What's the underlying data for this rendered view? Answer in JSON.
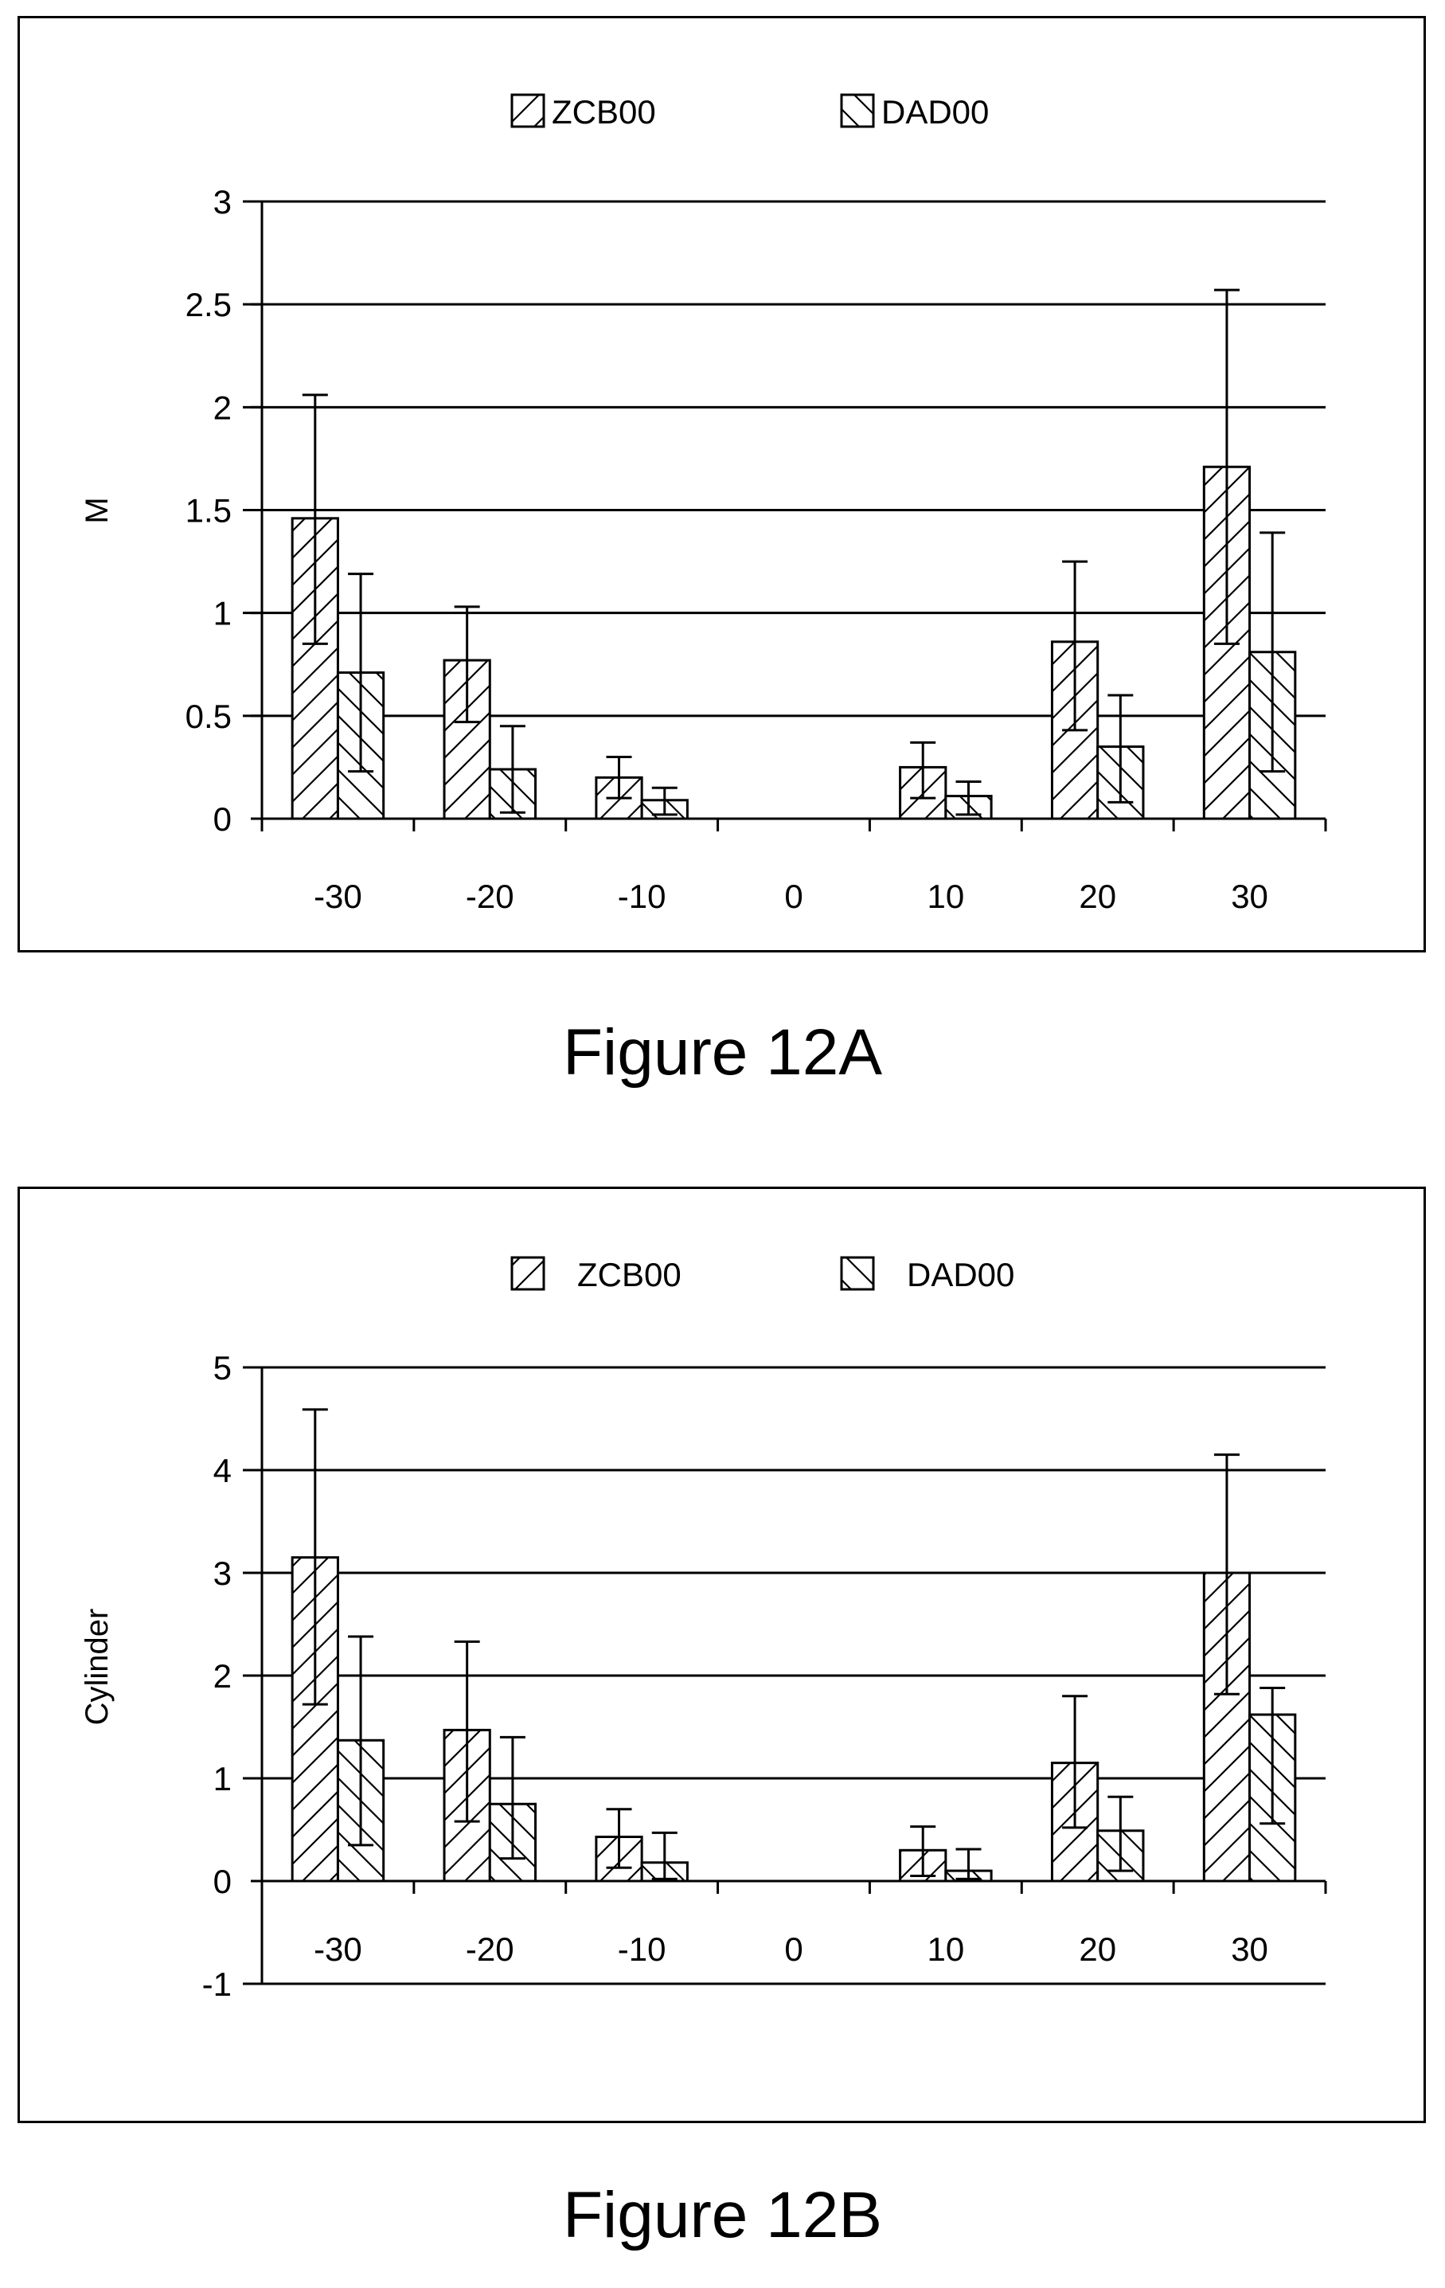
{
  "figures": [
    {
      "caption": "Figure 12A",
      "chart_data": {
        "type": "bar",
        "categories": [
          "-30",
          "-20",
          "-10",
          "0",
          "10",
          "20",
          "30"
        ],
        "series": [
          {
            "name": "ZCB00",
            "pattern": "forward-hatch",
            "values": [
              1.46,
              0.77,
              0.2,
              0,
              0.25,
              0.86,
              1.71
            ],
            "err_low": [
              0.85,
              0.47,
              0.1,
              0,
              0.1,
              0.43,
              0.85
            ],
            "err_high": [
              2.06,
              1.03,
              0.3,
              0,
              0.37,
              1.25,
              2.57
            ]
          },
          {
            "name": "DAD00",
            "pattern": "back-hatch",
            "values": [
              0.71,
              0.24,
              0.09,
              0,
              0.11,
              0.35,
              0.81
            ],
            "err_low": [
              0.23,
              0.03,
              0.02,
              0,
              0.02,
              0.08,
              0.23
            ],
            "err_high": [
              1.19,
              0.45,
              0.15,
              0,
              0.18,
              0.6,
              1.39
            ]
          }
        ],
        "ylabel": "M",
        "ylim": [
          0,
          3
        ],
        "yticks": [
          "0",
          "0.5",
          "1",
          "1.5",
          "2",
          "2.5",
          "3"
        ],
        "legend": "top-center",
        "grid": true
      }
    },
    {
      "caption": "Figure 12B",
      "chart_data": {
        "type": "bar",
        "categories": [
          "-30",
          "-20",
          "-10",
          "0",
          "10",
          "20",
          "30"
        ],
        "series": [
          {
            "name": "ZCB00",
            "pattern": "forward-hatch",
            "values": [
              3.15,
              1.47,
              0.43,
              0,
              0.3,
              1.15,
              3.0
            ],
            "err_low": [
              1.72,
              0.58,
              0.13,
              0,
              0.05,
              0.52,
              1.82
            ],
            "err_high": [
              4.59,
              2.33,
              0.7,
              0,
              0.53,
              1.8,
              4.15
            ]
          },
          {
            "name": "DAD00",
            "pattern": "back-hatch",
            "values": [
              1.37,
              0.75,
              0.18,
              0,
              0.1,
              0.49,
              1.62
            ],
            "err_low": [
              0.35,
              0.22,
              0.02,
              0,
              0.02,
              0.1,
              0.56
            ],
            "err_high": [
              2.38,
              1.4,
              0.47,
              0,
              0.31,
              0.82,
              1.88
            ]
          }
        ],
        "ylabel": "Cylinder",
        "ylim": [
          -1,
          5
        ],
        "yticks": [
          "-1",
          "0",
          "1",
          "2",
          "3",
          "4",
          "5"
        ],
        "legend": "top-center",
        "grid": true
      }
    }
  ]
}
